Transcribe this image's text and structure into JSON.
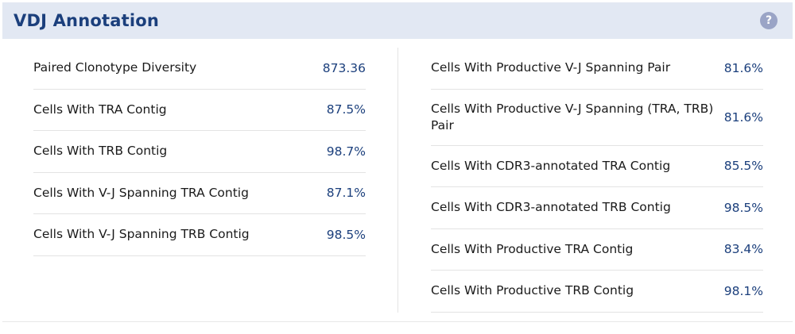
{
  "header": {
    "title": "VDJ Annotation",
    "help_glyph": "?"
  },
  "left_metrics": [
    {
      "label": "Paired Clonotype Diversity",
      "value": "873.36"
    },
    {
      "label": "Cells With TRA Contig",
      "value": "87.5%"
    },
    {
      "label": "Cells With TRB Contig",
      "value": "98.7%"
    },
    {
      "label": "Cells With V-J Spanning TRA Contig",
      "value": "87.1%"
    },
    {
      "label": "Cells With V-J Spanning TRB Contig",
      "value": "98.5%"
    }
  ],
  "right_metrics": [
    {
      "label": "Cells With Productive V-J Spanning Pair",
      "value": "81.6%"
    },
    {
      "label": "Cells With Productive V-J Spanning (TRA, TRB) Pair",
      "value": "81.6%"
    },
    {
      "label": "Cells With CDR3-annotated TRA Contig",
      "value": "85.5%"
    },
    {
      "label": "Cells With CDR3-annotated TRB Contig",
      "value": "98.5%"
    },
    {
      "label": "Cells With Productive TRA Contig",
      "value": "83.4%"
    },
    {
      "label": "Cells With Productive TRB Contig",
      "value": "98.1%"
    }
  ],
  "colors": {
    "header_bg": "#e2e8f3",
    "accent": "#1b3f7c",
    "help_icon": "#9aa4c6"
  }
}
